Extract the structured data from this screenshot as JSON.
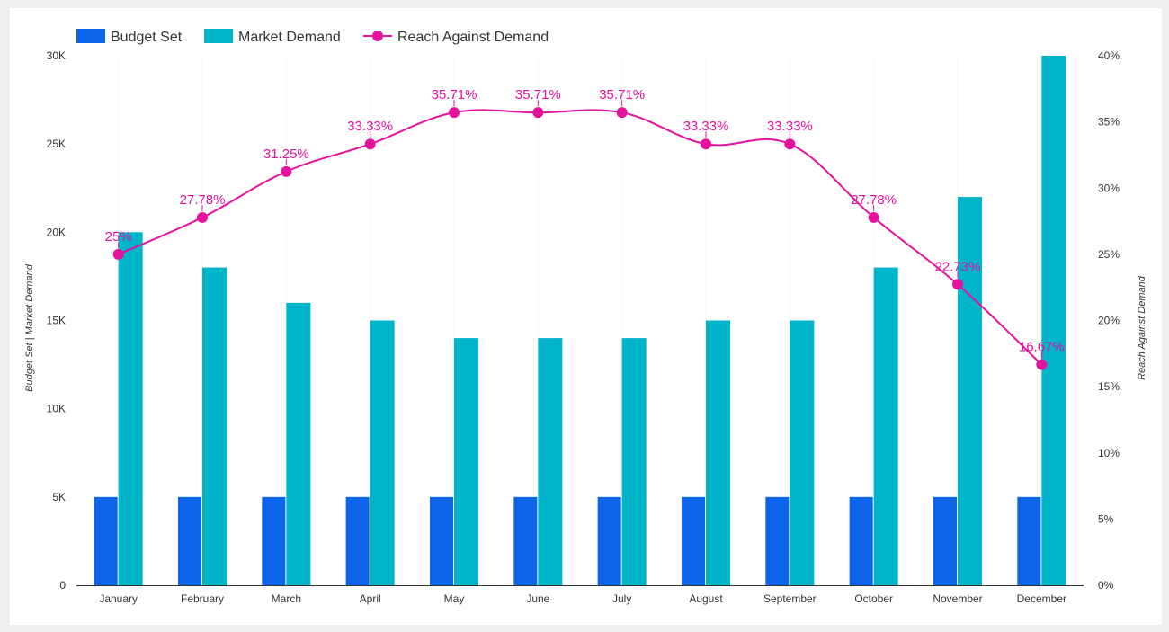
{
  "chart_data": {
    "type": "bar",
    "categories": [
      "January",
      "February",
      "March",
      "April",
      "May",
      "June",
      "July",
      "August",
      "September",
      "October",
      "November",
      "December"
    ],
    "series": [
      {
        "name": "Budget Set",
        "kind": "bar",
        "axis": "left",
        "color": "#0c65e8",
        "values": [
          5000,
          5000,
          5000,
          5000,
          5000,
          5000,
          5000,
          5000,
          5000,
          5000,
          5000,
          5000
        ]
      },
      {
        "name": "Market Demand",
        "kind": "bar",
        "axis": "left",
        "color": "#00b4c9",
        "values": [
          20000,
          18000,
          16000,
          15000,
          14000,
          14000,
          14000,
          15000,
          15000,
          18000,
          22000,
          30000
        ]
      },
      {
        "name": "Reach Against Demand",
        "kind": "line",
        "axis": "right",
        "color": "#e5129e",
        "values": [
          25,
          27.78,
          31.25,
          33.33,
          35.71,
          35.71,
          35.71,
          33.33,
          33.33,
          27.78,
          22.73,
          16.67
        ],
        "labels": [
          "25%",
          "27.78%",
          "31.25%",
          "33.33%",
          "35.71%",
          "35.71%",
          "35.71%",
          "33.33%",
          "33.33%",
          "27.78%",
          "22.73%",
          "16.67%"
        ]
      }
    ],
    "y_left": {
      "label": "Budget Set | Market Demand",
      "ylim": [
        0,
        30000
      ],
      "ticks": [
        0,
        5000,
        10000,
        15000,
        20000,
        25000,
        30000
      ],
      "tick_labels": [
        "0",
        "5K",
        "10K",
        "15K",
        "20K",
        "25K",
        "30K"
      ]
    },
    "y_right": {
      "label": "Reach Against Demand",
      "ylim": [
        0,
        40
      ],
      "ticks": [
        0,
        5,
        10,
        15,
        20,
        25,
        30,
        35,
        40
      ],
      "tick_labels": [
        "0%",
        "5%",
        "10%",
        "15%",
        "20%",
        "25%",
        "30%",
        "35%",
        "40%"
      ]
    },
    "legend_position": "top-left",
    "grid": true
  }
}
